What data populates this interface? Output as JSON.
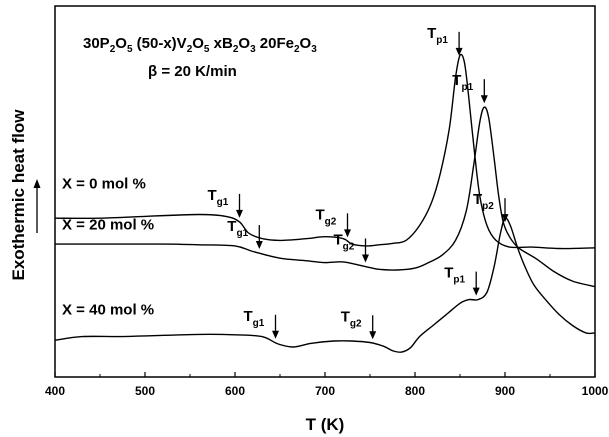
{
  "chart_data": {
    "type": "line",
    "title_parts": [
      "30P",
      "2",
      "O",
      "5",
      " (50-x)V",
      "2",
      "O",
      "5",
      " xB",
      "2",
      "O",
      "3",
      " 20Fe",
      "2",
      "O",
      "3"
    ],
    "subtitle": "β = 20 K/min",
    "xlabel": "T (K)",
    "ylabel": "Exothermic heat flow",
    "xlim": [
      400,
      1000
    ],
    "x_ticks": [
      400,
      500,
      600,
      700,
      800,
      900,
      1000
    ],
    "y_ticks_shown": false,
    "grid": false,
    "y_units": "arbitrary (curves vertically offset)",
    "series": [
      {
        "name": "X = 0  mol %",
        "points": [
          [
            400,
            0.34
          ],
          [
            450,
            0.34
          ],
          [
            500,
            0.345
          ],
          [
            560,
            0.35
          ],
          [
            590,
            0.345
          ],
          [
            605,
            0.33
          ],
          [
            615,
            0.3
          ],
          [
            630,
            0.285
          ],
          [
            650,
            0.28
          ],
          [
            680,
            0.285
          ],
          [
            700,
            0.29
          ],
          [
            720,
            0.285
          ],
          [
            730,
            0.27
          ],
          [
            745,
            0.265
          ],
          [
            760,
            0.268
          ],
          [
            775,
            0.272
          ],
          [
            790,
            0.28
          ],
          [
            805,
            0.32
          ],
          [
            818,
            0.38
          ],
          [
            828,
            0.46
          ],
          [
            838,
            0.58
          ],
          [
            845,
            0.72
          ],
          [
            850,
            0.78
          ],
          [
            855,
            0.76
          ],
          [
            860,
            0.66
          ],
          [
            866,
            0.52
          ],
          [
            872,
            0.4
          ],
          [
            880,
            0.32
          ],
          [
            890,
            0.28
          ],
          [
            905,
            0.262
          ],
          [
            930,
            0.262
          ],
          [
            960,
            0.258
          ],
          [
            1000,
            0.26
          ]
        ]
      },
      {
        "name": "X = 20 mol %",
        "points": [
          [
            400,
            0.27
          ],
          [
            450,
            0.27
          ],
          [
            520,
            0.27
          ],
          [
            560,
            0.268
          ],
          [
            600,
            0.265
          ],
          [
            620,
            0.25
          ],
          [
            650,
            0.232
          ],
          [
            680,
            0.225
          ],
          [
            700,
            0.22
          ],
          [
            720,
            0.222
          ],
          [
            740,
            0.212
          ],
          [
            760,
            0.202
          ],
          [
            780,
            0.2
          ],
          [
            800,
            0.205
          ],
          [
            815,
            0.22
          ],
          [
            830,
            0.24
          ],
          [
            845,
            0.28
          ],
          [
            857,
            0.36
          ],
          [
            865,
            0.48
          ],
          [
            872,
            0.6
          ],
          [
            877,
            0.64
          ],
          [
            882,
            0.61
          ],
          [
            888,
            0.5
          ],
          [
            893,
            0.4
          ],
          [
            898,
            0.33
          ],
          [
            905,
            0.29
          ],
          [
            915,
            0.26
          ],
          [
            935,
            0.23
          ],
          [
            955,
            0.195
          ],
          [
            975,
            0.17
          ],
          [
            1000,
            0.155
          ]
        ]
      },
      {
        "name": "X = 40 mol %",
        "points": [
          [
            400,
            0.01
          ],
          [
            430,
            0.02
          ],
          [
            470,
            0.02
          ],
          [
            500,
            0.022
          ],
          [
            560,
            0.026
          ],
          [
            600,
            0.025
          ],
          [
            630,
            0.02
          ],
          [
            648,
            0.0
          ],
          [
            665,
            -0.008
          ],
          [
            685,
            0.002
          ],
          [
            710,
            0.008
          ],
          [
            730,
            0.008
          ],
          [
            750,
            0.004
          ],
          [
            765,
            -0.006
          ],
          [
            775,
            -0.018
          ],
          [
            785,
            -0.022
          ],
          [
            795,
            -0.01
          ],
          [
            805,
            0.02
          ],
          [
            820,
            0.05
          ],
          [
            835,
            0.08
          ],
          [
            850,
            0.11
          ],
          [
            860,
            0.12
          ],
          [
            870,
            0.12
          ],
          [
            880,
            0.14
          ],
          [
            888,
            0.21
          ],
          [
            895,
            0.3
          ],
          [
            900,
            0.34
          ],
          [
            906,
            0.32
          ],
          [
            914,
            0.26
          ],
          [
            922,
            0.21
          ],
          [
            932,
            0.16
          ],
          [
            945,
            0.12
          ],
          [
            960,
            0.08
          ],
          [
            975,
            0.05
          ],
          [
            990,
            0.03
          ],
          [
            1000,
            0.03
          ]
        ]
      }
    ],
    "series_labels_y": [
      0.42,
      0.31,
      0.08
    ],
    "annotations": [
      {
        "main": "T",
        "sub": "g1",
        "series": 0,
        "x": 605
      },
      {
        "main": "T",
        "sub": "g2",
        "series": 0,
        "x": 725
      },
      {
        "main": "T",
        "sub": "p1",
        "series": 0,
        "x": 849
      },
      {
        "main": "T",
        "sub": "p1",
        "series": 1,
        "x": 877
      },
      {
        "main": "T",
        "sub": "g1",
        "series": 1,
        "x": 627
      },
      {
        "main": "T",
        "sub": "g2",
        "series": 1,
        "x": 745
      },
      {
        "main": "T",
        "sub": "p2",
        "series": 1,
        "x": 900
      },
      {
        "main": "T",
        "sub": "g1",
        "series": 2,
        "x": 645
      },
      {
        "main": "T",
        "sub": "g2",
        "series": 2,
        "x": 753
      },
      {
        "main": "T",
        "sub": "p1",
        "series": 2,
        "x": 868
      }
    ]
  }
}
